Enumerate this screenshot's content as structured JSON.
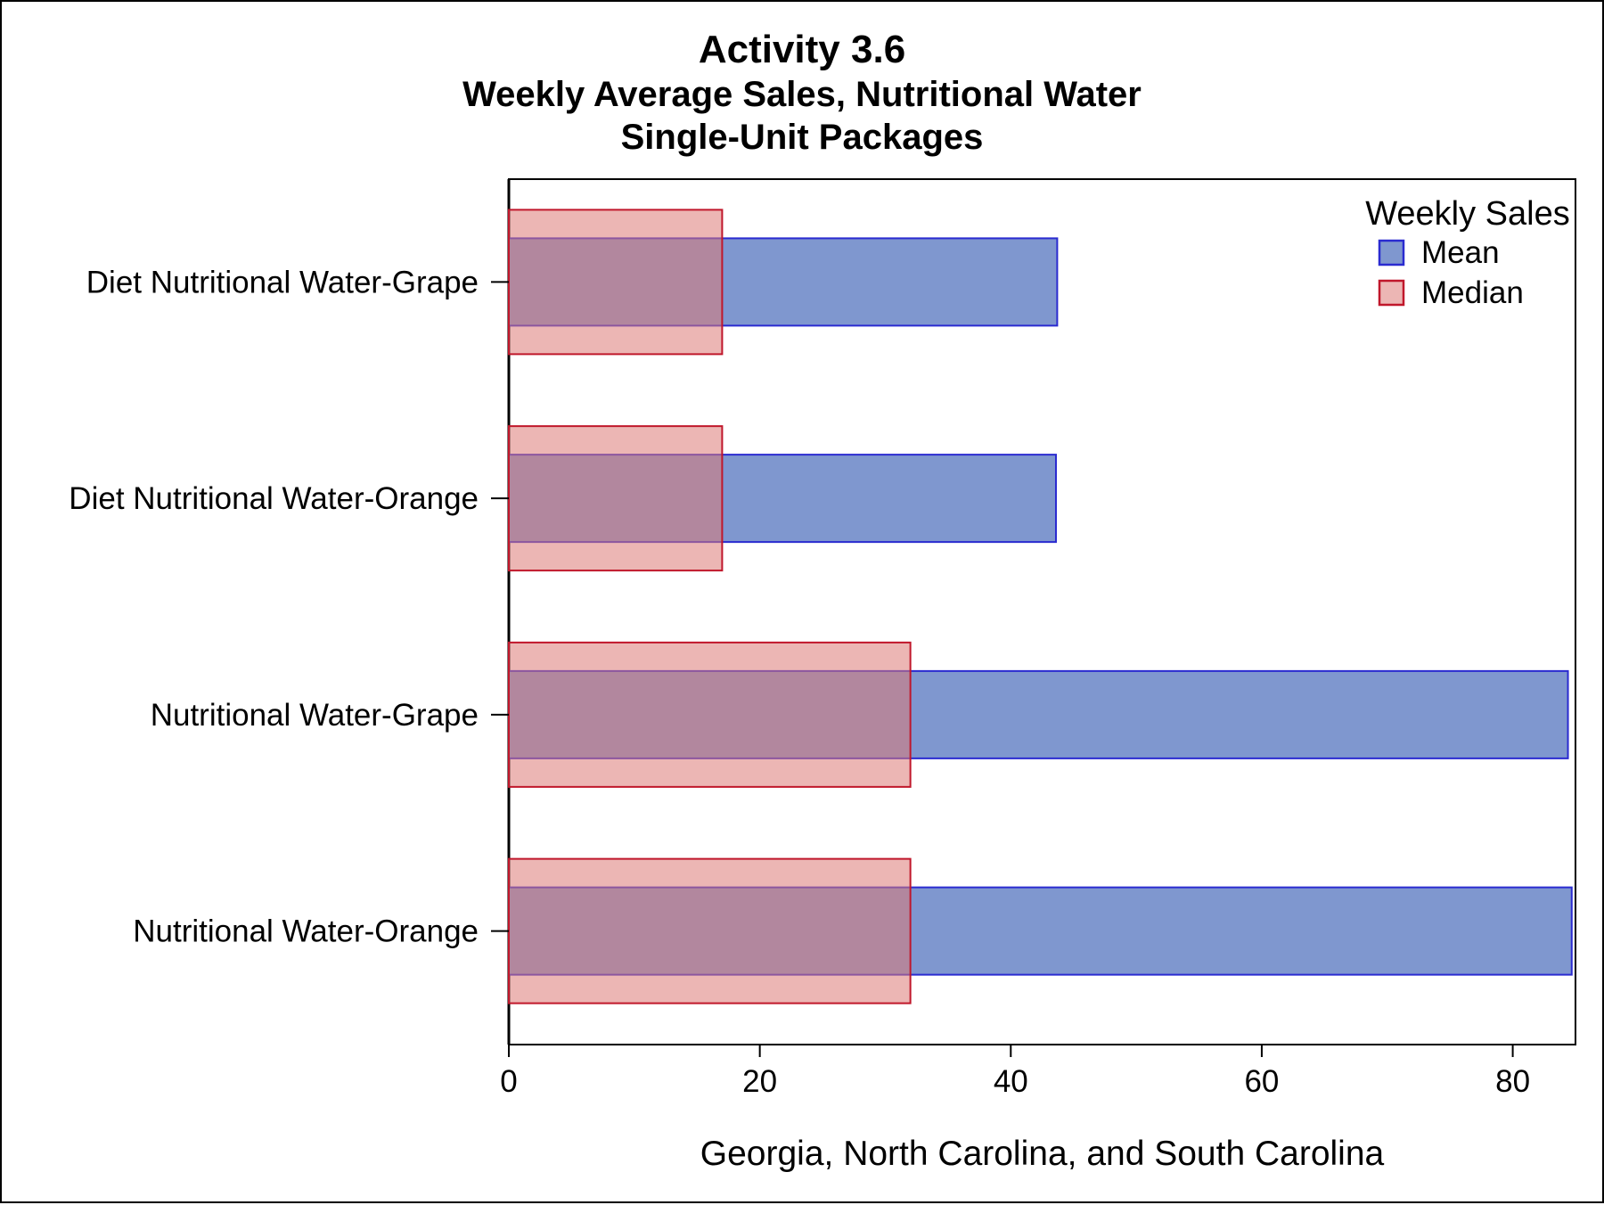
{
  "titles": {
    "line1": "Activity 3.6",
    "line2": "Weekly Average Sales, Nutritional Water",
    "line3": "Single-Unit Packages"
  },
  "chart_data": {
    "type": "bar",
    "orientation": "horizontal",
    "categories": [
      "Diet Nutritional Water-Grape",
      "Diet Nutritional Water-Orange",
      "Nutritional Water-Grape",
      "Nutritional Water-Orange"
    ],
    "series": [
      {
        "name": "Mean",
        "values": [
          43.7,
          43.6,
          84.4,
          84.7
        ],
        "color": "#7f97cf",
        "stroke": "#2a2bd0"
      },
      {
        "name": "Median",
        "values": [
          17,
          17,
          32,
          32
        ],
        "color": "rgba(221,122,118,0.55)",
        "stroke": "#c0172b"
      }
    ],
    "xlabel": "Georgia, North Carolina, and South Carolina",
    "ylabel": "",
    "xlim": [
      0,
      85
    ],
    "xticks": [
      0,
      20,
      40,
      60,
      80
    ],
    "grid": false,
    "legend": {
      "title": "Weekly Sales",
      "placement": "top-right"
    }
  }
}
